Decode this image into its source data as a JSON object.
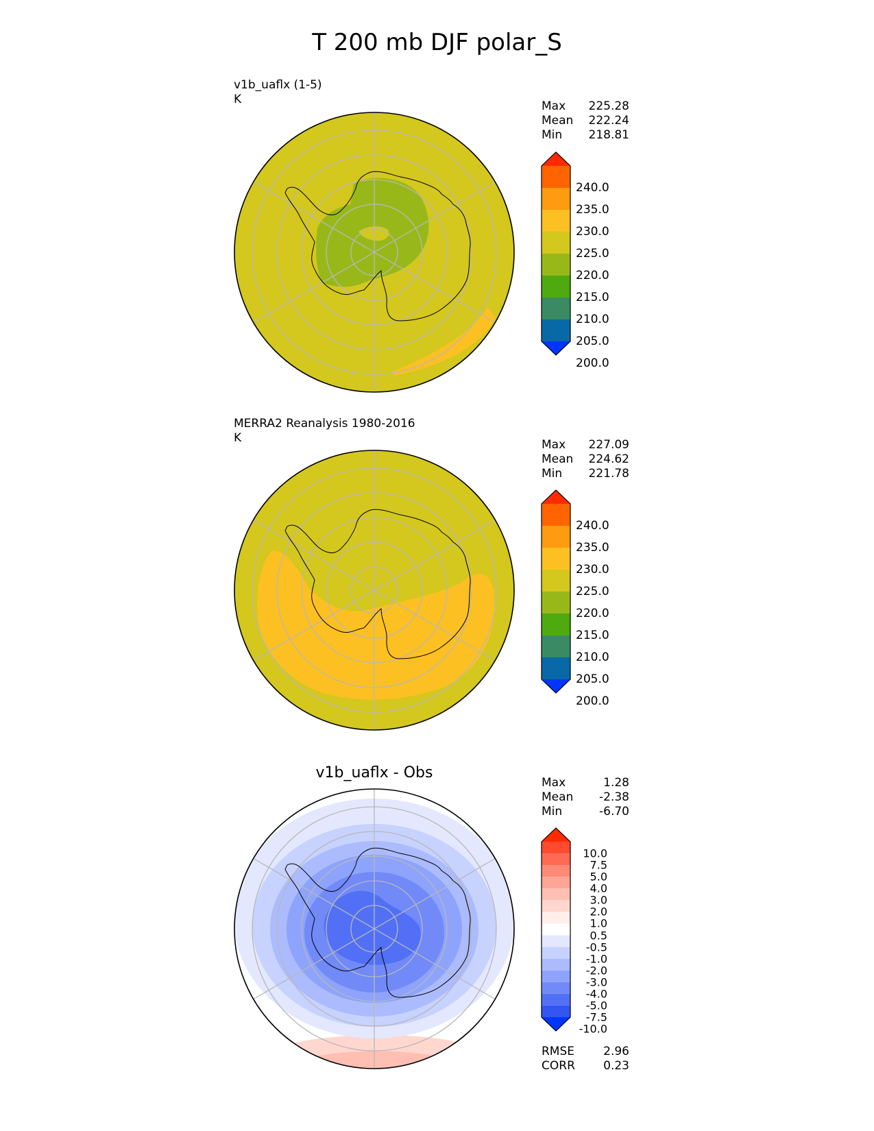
{
  "figure": {
    "title": "T 200 mb DJF polar_S"
  },
  "panels": [
    {
      "id": "test",
      "subtitle_line1": "v1b_uaflx (1-5)",
      "subtitle_line2": "K",
      "stats": {
        "max_label": "Max",
        "max": "225.28",
        "mean_label": "Mean",
        "mean": "222.24",
        "min_label": "Min",
        "min": "218.81"
      }
    },
    {
      "id": "reference",
      "subtitle_line1": "MERRA2 Reanalysis 1980-2016",
      "subtitle_line2": "K",
      "stats": {
        "max_label": "Max",
        "max": "227.09",
        "mean_label": "Mean",
        "mean": "224.62",
        "min_label": "Min",
        "min": "221.78"
      }
    },
    {
      "id": "difference",
      "center_title": "v1b_uaflx - Obs",
      "stats": {
        "max_label": "Max",
        "max": "1.28",
        "mean_label": "Mean",
        "mean": "-2.38",
        "min_label": "Min",
        "min": "-6.70"
      },
      "metrics": {
        "rmse_label": "RMSE",
        "rmse": "2.96",
        "corr_label": "CORR",
        "corr": "0.23"
      }
    }
  ],
  "colorbar_main": {
    "levels": [
      "240.0",
      "235.0",
      "230.0",
      "225.0",
      "220.0",
      "215.0",
      "210.0",
      "205.0",
      "200.0"
    ],
    "colors_top_to_bottom": [
      "#ff2a00",
      "#ff6400",
      "#ff9b10",
      "#fcc022",
      "#d4c71e",
      "#98b81a",
      "#4faa10",
      "#3a8a64",
      "#0869a6",
      "#0035ff"
    ]
  },
  "colorbar_diff": {
    "levels": [
      "10.0",
      "7.5",
      "5.0",
      "4.0",
      "3.0",
      "2.0",
      "1.0",
      "0.5",
      "-0.5",
      "-1.0",
      "-2.0",
      "-3.0",
      "-4.0",
      "-5.0",
      "-7.5",
      "-10.0"
    ],
    "colors_top_to_bottom": [
      "#ff2b00",
      "#ff4a30",
      "#ff6a55",
      "#ff8a75",
      "#ffa595",
      "#ffbfb3",
      "#ffd7cf",
      "#ffeeea",
      "#ffffff",
      "#e3e8ff",
      "#c7d2fe",
      "#abbbfd",
      "#8ea3fb",
      "#718af8",
      "#5270f5",
      "#3355f2",
      "#0035ff"
    ]
  },
  "map_colors": {
    "bg_220_225": "#d4c71e",
    "band_225_230": "#fcc022",
    "band_215_220": "#98b81a",
    "diff_ring_minus_0_5": "#e3e8ff",
    "diff_minus_1": "#c7d2fe",
    "diff_minus_2": "#abbbfd",
    "diff_minus_3": "#8ea3fb",
    "diff_minus_4": "#718af8",
    "diff_minus_5": "#5270f5",
    "diff_pos_0_5": "#ffd7cf",
    "diff_pos_1": "#ffbfb3"
  }
}
